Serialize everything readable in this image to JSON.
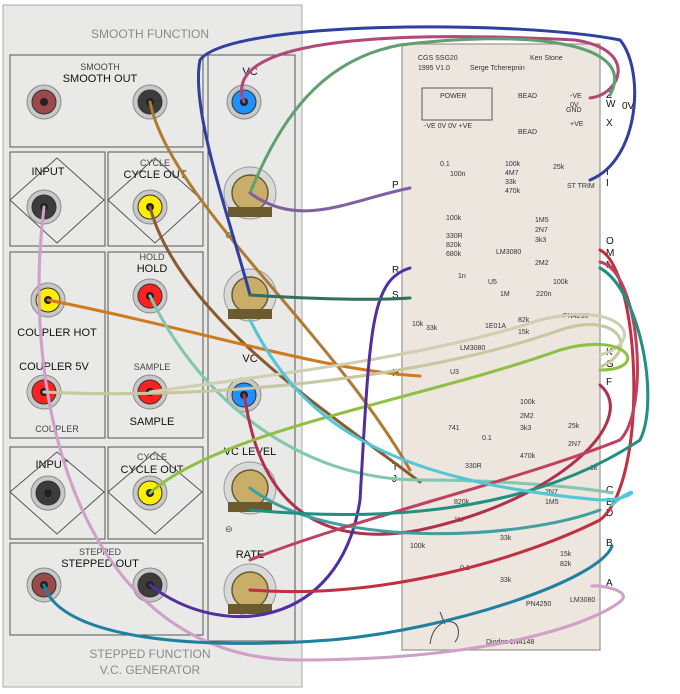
{
  "panel": {
    "title_top": "SMOOTH FUNCTION",
    "title_bottom_1": "STEPPED FUNCTION",
    "title_bottom_2": "V.C. GENERATOR",
    "jacks": [
      {
        "key": "smooth_out",
        "label": "SMOOTH OUT",
        "sublabel": "SMOOTH",
        "color": "#9a4a4a"
      },
      {
        "key": "smooth_out2",
        "label": "",
        "sublabel": "",
        "color": "#3c3c3c"
      },
      {
        "key": "vc_top",
        "label": "VC",
        "sublabel": "",
        "color": "#1e90ff"
      },
      {
        "key": "input_top",
        "label": "INPUT",
        "sublabel": "",
        "color": "#3c3c3c"
      },
      {
        "key": "cycle_out_top",
        "label": "CYCLE OUT",
        "sublabel": "CYCLE",
        "color": "#ffee00"
      },
      {
        "key": "coupler_hot",
        "label": "COUPLER HOT",
        "sublabel": "",
        "color": "#ffee00"
      },
      {
        "key": "hold",
        "label": "HOLD",
        "sublabel": "HOLD",
        "color": "#ff2020"
      },
      {
        "key": "coupler_5v",
        "label": "COUPLER 5V",
        "sublabel": "COUPLER",
        "color": "#ff2020"
      },
      {
        "key": "sample",
        "label": "SAMPLE",
        "sublabel": "SAMPLE",
        "color": "#ff2020"
      },
      {
        "key": "vc_mid",
        "label": "VC",
        "sublabel": "",
        "color": "#1e90ff"
      },
      {
        "key": "input_bottom",
        "label": "INPUT",
        "sublabel": "",
        "color": "#3c3c3c"
      },
      {
        "key": "cycle_out_bottom",
        "label": "CYCLE OUT",
        "sublabel": "CYCLE",
        "color": "#ffee00"
      },
      {
        "key": "stepped_out",
        "label": "STEPPED OUT",
        "sublabel": "STEPPED",
        "color": "#9a4a4a"
      },
      {
        "key": "stepped_out2",
        "label": "",
        "sublabel": "",
        "color": "#3c3c3c"
      }
    ],
    "knobs": [
      {
        "key": "knob1",
        "label": ""
      },
      {
        "key": "knob2",
        "label": ""
      },
      {
        "key": "vc_level",
        "label": "VC LEVEL"
      },
      {
        "key": "rate",
        "label": "RATE"
      }
    ]
  },
  "pcb": {
    "title": "CGS SSG20",
    "version": "1995 V1.0",
    "designer": "Serge Tcherepnin",
    "author": "Ken Stone",
    "power_label": "POWER",
    "power_pins": "-VE 0V 0V +VE",
    "bead_1": "BEAD",
    "bead_2": "BEAD",
    "diodes": "Diodes 1N4148",
    "parts": [
      "0.1",
      "100n",
      "100k",
      "4M7",
      "33k",
      "470k",
      "25k",
      "ST TRIM",
      "100k",
      "330R",
      "820k",
      "680k",
      "1n",
      "1M5",
      "2N7",
      "3k3",
      "2M2",
      "100k",
      "LM3080",
      "U5",
      "1M",
      "220n",
      "82k",
      "15k",
      "PN4250",
      "1E01A",
      "10k",
      "33k",
      "LM3080",
      "U3",
      "741",
      "0.1",
      "470k",
      "330R",
      "100k",
      "2M2",
      "3k3",
      "25k",
      "2N7",
      "1k",
      "820k",
      "2N7",
      "1M5",
      "1M",
      "33k",
      "15k",
      "82k",
      "33k",
      "PN4250",
      "LM3080",
      "0.1",
      "100k"
    ]
  },
  "pins": {
    "right": [
      {
        "name": "Z",
        "sub": "-VE"
      },
      {
        "name": "W",
        "sub": "0V"
      },
      {
        "name": "X",
        "sub": "+VE"
      },
      {
        "name": "I",
        "sub": ""
      },
      {
        "name": "I",
        "sub": ""
      },
      {
        "name": "O",
        "sub": ""
      },
      {
        "name": "M",
        "sub": ""
      },
      {
        "name": "N",
        "sub": ""
      },
      {
        "name": "K",
        "sub": ""
      },
      {
        "name": "G",
        "sub": ""
      },
      {
        "name": "F",
        "sub": ""
      },
      {
        "name": "C",
        "sub": ""
      },
      {
        "name": "E",
        "sub": ""
      },
      {
        "name": "D",
        "sub": ""
      },
      {
        "name": "B",
        "sub": ""
      },
      {
        "name": "A",
        "sub": ""
      }
    ],
    "left": [
      {
        "name": "P"
      },
      {
        "name": "R"
      },
      {
        "name": "S"
      },
      {
        "name": "H"
      },
      {
        "name": "T"
      },
      {
        "name": "J"
      }
    ],
    "misc": {
      "gnd": "GND",
      "ov": "0V"
    }
  },
  "wires": [
    {
      "from": "smooth_out2",
      "to": "T",
      "color": "#b07a30"
    },
    {
      "from": "vc_top",
      "to": "Z",
      "color": "#b04878"
    },
    {
      "from": "input_top",
      "to": "A",
      "color": "#d0a0c8"
    },
    {
      "from": "cycle_out_top",
      "to": "J",
      "color": "#8a5a30"
    },
    {
      "from": "coupler_hot",
      "to": "H",
      "color": "#d07a20"
    },
    {
      "from": "hold",
      "to": "C",
      "color": "#80c8b0"
    },
    {
      "from": "coupler_5v",
      "to": "G",
      "color": "#c8c8a0"
    },
    {
      "from": "sample",
      "to": "K",
      "color": "#d0d0b0"
    },
    {
      "from": "vc_mid",
      "to": "F",
      "color": "#b03050"
    },
    {
      "from": "cycle_out_bottom",
      "to": "G2",
      "color": "#90c040"
    },
    {
      "from": "stepped_out2",
      "to": "R",
      "color": "#5030a0"
    },
    {
      "from": "knob1",
      "to": "W",
      "color": "#60a070"
    },
    {
      "from": "knob1b",
      "to": "P",
      "color": "#8060a0"
    },
    {
      "from": "knob2",
      "to": "X",
      "color": "#3040a0"
    },
    {
      "from": "knob2b",
      "to": "S",
      "color": "#307060"
    },
    {
      "from": "vc_level",
      "to": "E",
      "color": "#40a0a0"
    },
    {
      "from": "rate",
      "to": "O",
      "color": "#c03040"
    },
    {
      "from": "rate2",
      "to": "M",
      "color": "#c04060"
    },
    {
      "from": "knob3",
      "to": "N",
      "color": "#209080"
    },
    {
      "from": "vc_level2",
      "to": "D",
      "color": "#50c8d8"
    },
    {
      "from": "stepped_out",
      "to": "B",
      "color": "#2080a0"
    }
  ]
}
